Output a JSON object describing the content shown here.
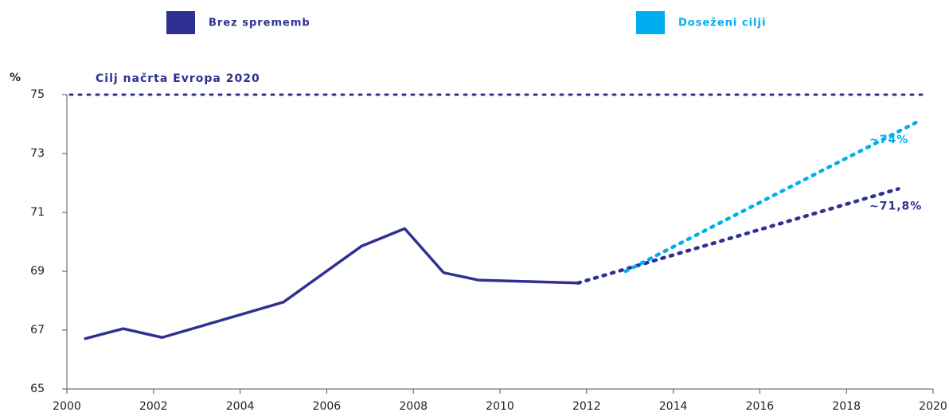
{
  "chart_data": {
    "type": "line",
    "y_label": "%",
    "xlim": [
      2000,
      2020
    ],
    "xticks": [
      2000,
      2002,
      2004,
      2006,
      2008,
      2010,
      2012,
      2014,
      2016,
      2018,
      2020
    ],
    "ylim": [
      65,
      75
    ],
    "yticks": [
      65,
      67,
      69,
      71,
      73,
      75
    ],
    "reference_line": {
      "value": 75,
      "label": "Cilj načrta Evropa 2020",
      "color": "#2e3192"
    },
    "series": [
      {
        "color": "#2e3192",
        "style": "solid",
        "x": [
          2000.4,
          2001.3,
          2002.2,
          2005.0,
          2006.8,
          2007.8,
          2008.7,
          2009.5,
          2011.8
        ],
        "values": [
          66.7,
          67.05,
          66.75,
          67.95,
          69.85,
          70.45,
          68.95,
          68.7,
          68.6
        ]
      },
      {
        "name": "Brez sprememb",
        "color": "#2e3192",
        "style": "dotted",
        "x": [
          2011.8,
          2019.2
        ],
        "values": [
          68.6,
          71.8
        ],
        "end_label": "~71,8%"
      },
      {
        "name": "Doseženi cilji",
        "color": "#00aeef",
        "style": "dotted",
        "x": [
          2012.9,
          2019.6
        ],
        "values": [
          69.0,
          74.05
        ],
        "end_label": "~74%"
      }
    ]
  }
}
